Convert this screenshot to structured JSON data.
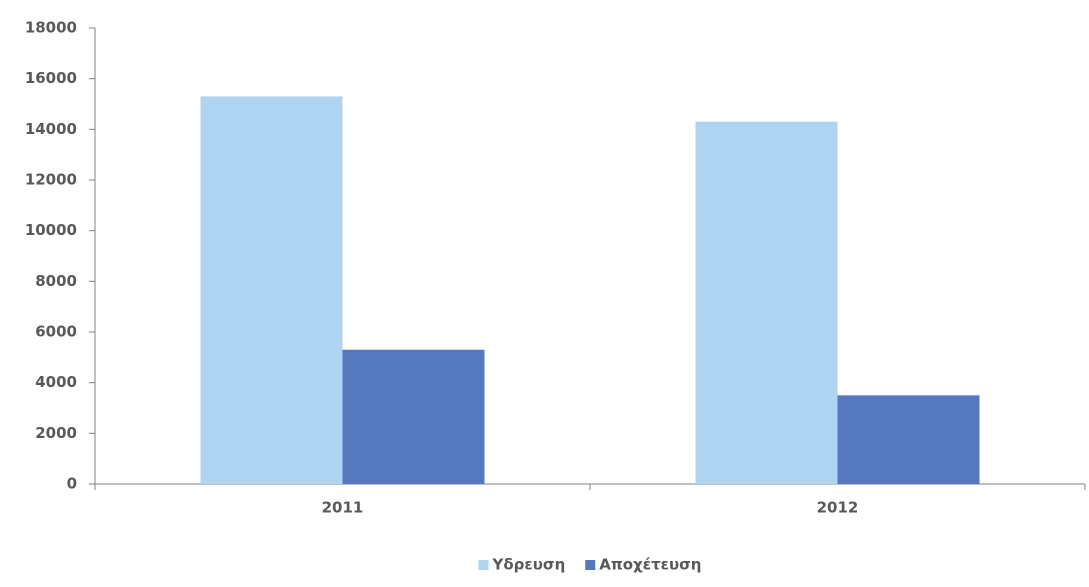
{
  "chart_data": {
    "type": "bar",
    "categories": [
      "2011",
      "2012"
    ],
    "series": [
      {
        "name": "Υδρευση",
        "color": "#aed4f2",
        "values": [
          15300,
          14300
        ]
      },
      {
        "name": "Αποχέτευση",
        "color": "#5578be",
        "values": [
          5300,
          3500
        ]
      }
    ],
    "ylim": [
      0,
      18000
    ],
    "yticks": [
      0,
      2000,
      4000,
      6000,
      8000,
      10000,
      12000,
      14000,
      16000,
      18000
    ],
    "grid": false,
    "legend": "bottom"
  }
}
